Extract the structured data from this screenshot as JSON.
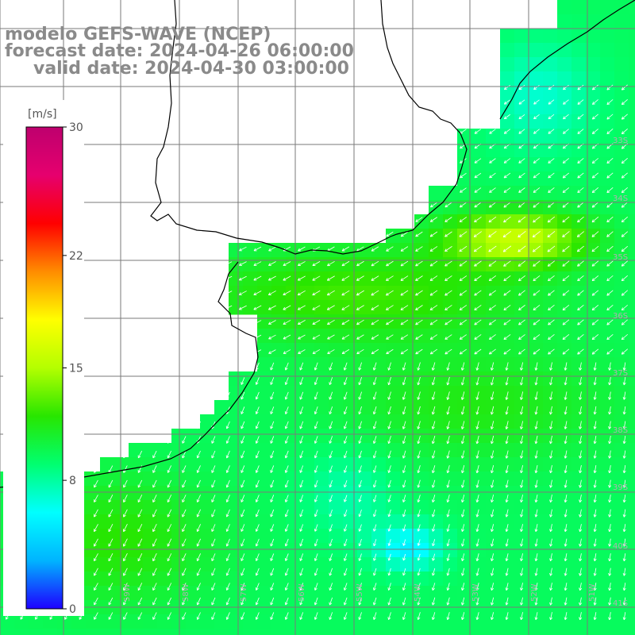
{
  "title": {
    "model": "modelo GEFS-WAVE (NCEP)",
    "forecast": "forecast date: 2024-04-26 06:00:00",
    "valid": "valid date: 2024-04-30 03:00:00"
  },
  "colorbar": {
    "unit": "[m/s]",
    "ticks": [
      {
        "value": 30,
        "label": "30"
      },
      {
        "value": 22,
        "label": "22"
      },
      {
        "value": 15,
        "label": "15"
      },
      {
        "value": 8,
        "label": "8"
      },
      {
        "value": 0,
        "label": "0"
      }
    ],
    "range": [
      0,
      30
    ],
    "stops": [
      "#1e00ff",
      "#00b4ff",
      "#00ffff",
      "#00ff70",
      "#28e600",
      "#b4ff00",
      "#ffff00",
      "#ff8c00",
      "#ff0000",
      "#e6006e",
      "#be006e"
    ]
  },
  "lat_labels": [
    "33S",
    "34S",
    "35S",
    "36S",
    "37S",
    "38S",
    "39S",
    "40S",
    "41S"
  ],
  "lon_labels": [
    "61W",
    "60W",
    "59W",
    "58W",
    "57W",
    "56W",
    "55W",
    "54W",
    "53W",
    "52W",
    "51W",
    "50W"
  ],
  "colors": {
    "land": "#ffffff",
    "grid": "#7a7a7a",
    "coast": "#000000",
    "arrows": "#ffffff",
    "axis_label": "#b0b0b0"
  }
}
